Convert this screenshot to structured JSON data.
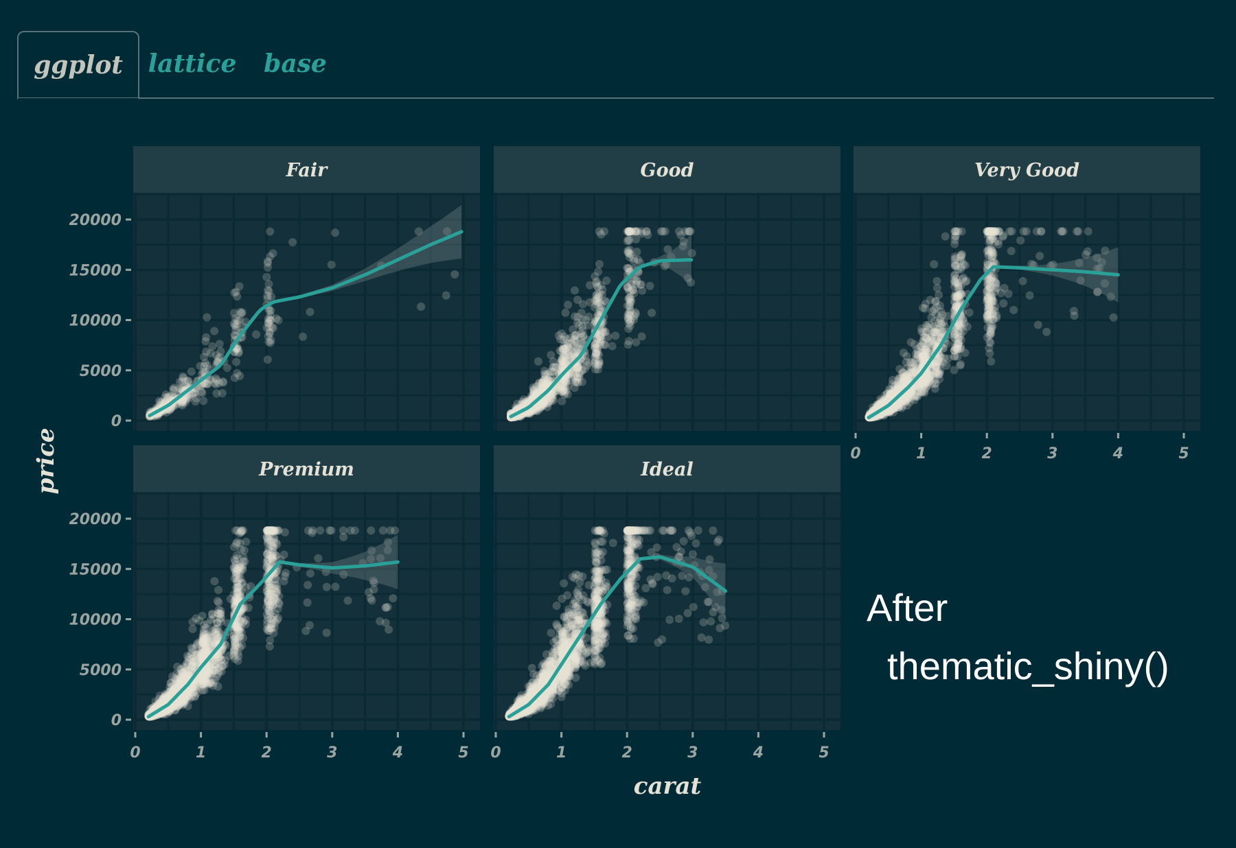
{
  "tabs": [
    {
      "label": "ggplot",
      "active": true
    },
    {
      "label": "lattice",
      "active": false
    },
    {
      "label": "base",
      "active": false
    }
  ],
  "annotation": {
    "line1": "After",
    "line2": "thematic_shiny()"
  },
  "colors": {
    "background": "#002b36",
    "panel": "#14313b",
    "grid": "#0b2a33",
    "strip": "#213e46",
    "points": "#e6e4d6",
    "smooth": "#2aa198",
    "axis_text": "#9aa5a1",
    "tab_active": "#c3c5ba",
    "tab_inactive": "#2aa198"
  },
  "chart_data": {
    "type": "scatter",
    "layout": "facet_wrap",
    "xlabel": "carat",
    "ylabel": "price",
    "xlim": [
      0,
      5.2
    ],
    "ylim": [
      0,
      22000
    ],
    "x_ticks": [
      "0",
      "1",
      "2",
      "3",
      "4",
      "5"
    ],
    "y_ticks": [
      "0",
      "5000",
      "10000",
      "15000",
      "20000"
    ],
    "grid": true,
    "smooth": "gam with confidence ribbon",
    "facets": [
      {
        "name": "Fair",
        "x_range": [
          0.22,
          5.01
        ],
        "smooth": {
          "x": [
            0.22,
            0.5,
            0.8,
            1.0,
            1.3,
            1.6,
            1.9,
            2.1,
            2.5,
            3.0,
            3.5,
            4.0,
            4.5,
            5.01
          ],
          "y": [
            500,
            1500,
            3000,
            4000,
            5500,
            8500,
            11000,
            11800,
            12300,
            13200,
            14500,
            16000,
            17500,
            18900
          ]
        }
      },
      {
        "name": "Good",
        "x_range": [
          0.23,
          3.01
        ],
        "smooth": {
          "x": [
            0.23,
            0.5,
            0.8,
            1.0,
            1.3,
            1.6,
            1.9,
            2.2,
            2.5,
            3.01
          ],
          "y": [
            400,
            1300,
            3000,
            4500,
            6500,
            10000,
            13500,
            15300,
            15900,
            16000
          ]
        }
      },
      {
        "name": "Very Good",
        "x_range": [
          0.2,
          4.0
        ],
        "smooth": {
          "x": [
            0.2,
            0.5,
            0.8,
            1.0,
            1.3,
            1.6,
            1.9,
            2.1,
            2.5,
            3.0,
            3.5,
            4.0
          ],
          "y": [
            300,
            1500,
            3300,
            4700,
            7500,
            11000,
            14000,
            15300,
            15200,
            15000,
            14800,
            14500
          ]
        }
      },
      {
        "name": "Premium",
        "x_range": [
          0.2,
          4.01
        ],
        "smooth": {
          "x": [
            0.2,
            0.5,
            0.8,
            1.0,
            1.3,
            1.6,
            1.9,
            2.2,
            2.5,
            3.0,
            3.5,
            4.01
          ],
          "y": [
            300,
            1500,
            3500,
            5200,
            7500,
            11500,
            13500,
            15700,
            15400,
            15100,
            15300,
            15700
          ]
        }
      },
      {
        "name": "Ideal",
        "x_range": [
          0.2,
          3.5
        ],
        "smooth": {
          "x": [
            0.2,
            0.5,
            0.8,
            1.0,
            1.3,
            1.6,
            1.9,
            2.2,
            2.5,
            3.0,
            3.5
          ],
          "y": [
            300,
            1500,
            3500,
            5500,
            8500,
            11500,
            14000,
            16000,
            16200,
            15200,
            12800
          ]
        }
      }
    ]
  }
}
